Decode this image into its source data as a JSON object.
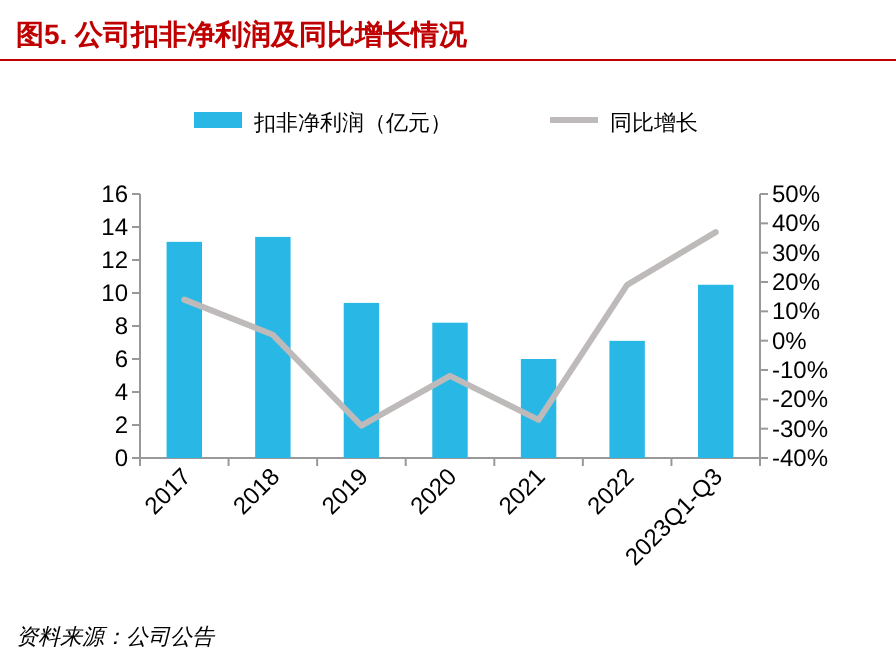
{
  "chart_data": {
    "type": "bar",
    "title": "图5. 公司扣非净利润及同比增长情况",
    "categories": [
      "2017",
      "2018",
      "2019",
      "2020",
      "2021",
      "2022",
      "2023Q1-Q3"
    ],
    "series": [
      {
        "name": "扣非净利润（亿元）",
        "color": "#29b8e5",
        "values": [
          13.1,
          13.4,
          9.4,
          8.2,
          6.0,
          7.1,
          10.5
        ]
      },
      {
        "name": "同比增长",
        "type": "line",
        "axis": "y2",
        "color": "#bfbaba",
        "values": [
          14,
          2,
          -29,
          -12,
          -27,
          19,
          37
        ]
      }
    ],
    "ylim": [
      0,
      16
    ],
    "yticks": [
      0,
      2,
      4,
      6,
      8,
      10,
      12,
      14,
      16
    ],
    "y2lim": [
      -40,
      50
    ],
    "y2ticks": [
      {
        "value": -40,
        "label": "-40%"
      },
      {
        "value": -30,
        "label": "-30%"
      },
      {
        "value": -20,
        "label": "-20%"
      },
      {
        "value": -10,
        "label": "-10%"
      },
      {
        "value": 0,
        "label": "0%"
      },
      {
        "value": 10,
        "label": "10%"
      },
      {
        "value": 20,
        "label": "20%"
      },
      {
        "value": 30,
        "label": "30%"
      },
      {
        "value": 40,
        "label": "40%"
      },
      {
        "value": 50,
        "label": "50%"
      }
    ],
    "legend": "top",
    "grid": false,
    "marker": "none",
    "annotations": [
      "资料来源：公司公告"
    ]
  }
}
